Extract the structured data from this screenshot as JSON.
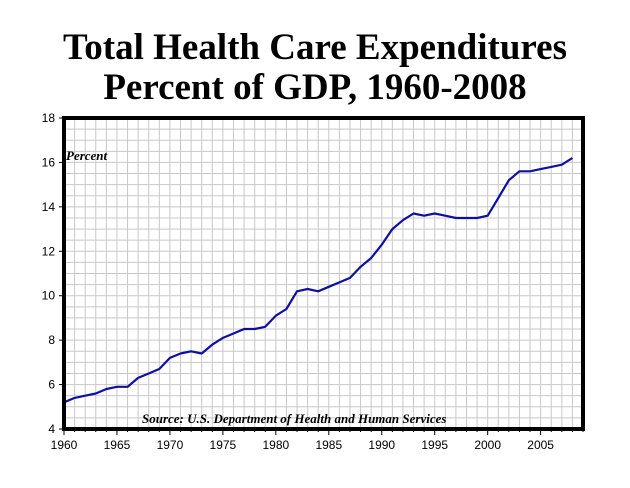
{
  "chart_data": {
    "type": "line",
    "title": [
      "Total Health Care Expenditures",
      "Percent of GDP, 1960-2008"
    ],
    "ylabel": "Percent",
    "xlabel": "",
    "annotation": "Source: U.S. Department of Health and Human Services",
    "xlim": [
      1960,
      2009
    ],
    "ylim": [
      4,
      18
    ],
    "xticks": [
      1960,
      1965,
      1970,
      1975,
      1980,
      1985,
      1990,
      1995,
      2000,
      2005
    ],
    "yticks": [
      4,
      6,
      8,
      10,
      12,
      14,
      16,
      18
    ],
    "grid": true,
    "line_color": "#1010a0",
    "series": [
      {
        "x": [
          1960,
          1961,
          1962,
          1963,
          1964,
          1965,
          1966,
          1967,
          1968,
          1969,
          1970,
          1971,
          1972,
          1973,
          1974,
          1975,
          1976,
          1977,
          1978,
          1979,
          1980,
          1981,
          1982,
          1983,
          1984,
          1985,
          1986,
          1987,
          1988,
          1989,
          1990,
          1991,
          1992,
          1993,
          1994,
          1995,
          1996,
          1997,
          1998,
          1999,
          2000,
          2001,
          2002,
          2003,
          2004,
          2005,
          2006,
          2007,
          2008
        ],
        "values": [
          5.2,
          5.4,
          5.5,
          5.6,
          5.8,
          5.9,
          5.9,
          6.3,
          6.5,
          6.7,
          7.2,
          7.4,
          7.5,
          7.4,
          7.8,
          8.1,
          8.3,
          8.5,
          8.5,
          8.6,
          9.1,
          9.4,
          10.2,
          10.3,
          10.2,
          10.4,
          10.6,
          10.8,
          11.3,
          11.7,
          12.3,
          13.0,
          13.4,
          13.7,
          13.6,
          13.7,
          13.6,
          13.5,
          13.5,
          13.5,
          13.6,
          14.4,
          15.2,
          15.6,
          15.6,
          15.7,
          15.8,
          15.9,
          16.2
        ]
      }
    ]
  }
}
